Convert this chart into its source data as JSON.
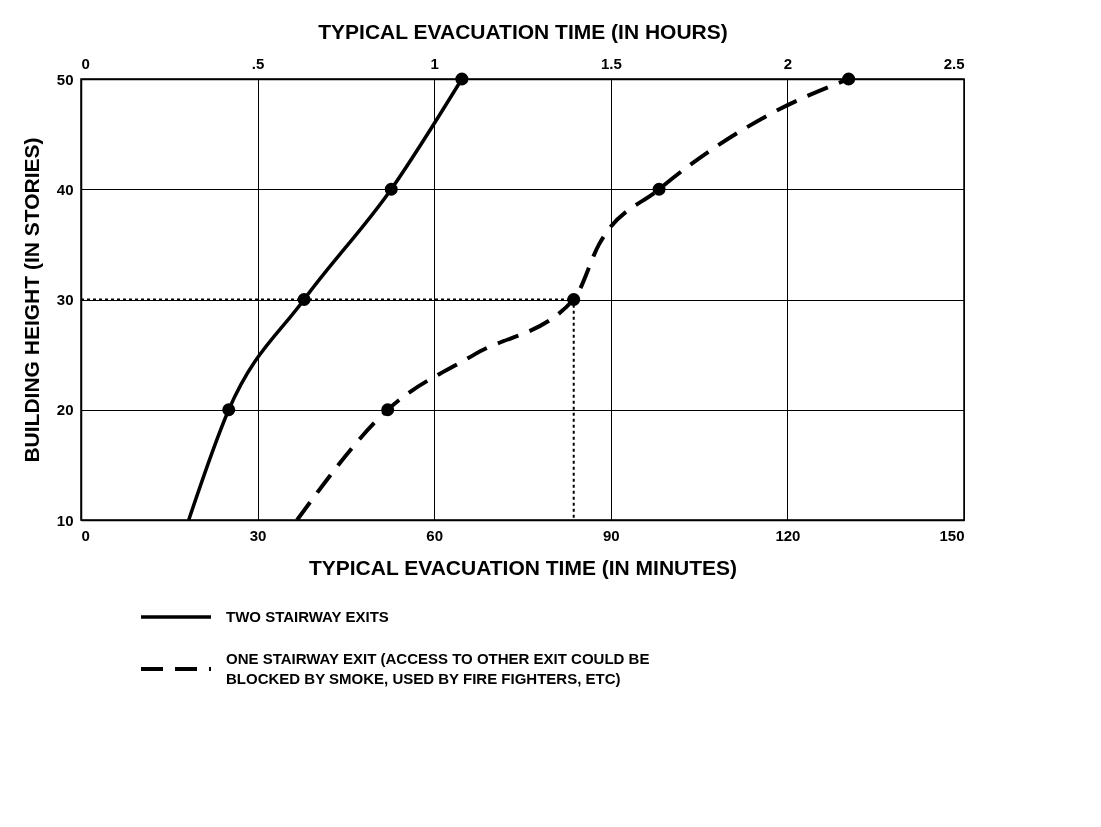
{
  "chart_data": {
    "type": "line",
    "xlabel": "TYPICAL EVACUATION TIME (IN MINUTES)",
    "x2label": "TYPICAL EVACUATION TIME (IN HOURS)",
    "ylabel": "BUILDING HEIGHT (IN STORIES)",
    "xlim": [
      0,
      150
    ],
    "xticks": [
      0,
      30,
      60,
      90,
      120,
      150
    ],
    "ylim": [
      10,
      50
    ],
    "yticks": [
      10,
      20,
      30,
      40,
      50
    ],
    "x2lim": [
      0,
      2.5
    ],
    "x2ticks": [
      0,
      {
        "value": 0.5,
        "label": ".5"
      },
      1,
      1.5,
      2,
      2.5
    ],
    "grid": true,
    "legend": "bottom",
    "series": [
      {
        "name": "TWO STAIRWAY EXITS",
        "line_style": "solid",
        "color": "#000000",
        "x": [
          18.3,
          25.1,
          37.9,
          52.7,
          64.7
        ],
        "values": [
          10,
          20,
          30,
          40,
          50
        ]
      },
      {
        "name": "ONE STAIRWAY EXIT (ACCESS TO OTHER EXIT COULD BE BLOCKED BY SMOKE, USED BY FIRE FIGHTERS, ETC)",
        "line_style": "dashed",
        "color": "#000000",
        "x": [
          36.7,
          52.1,
          66.8,
          83.7,
          88.0,
          98.2,
          117.7,
          130.4
        ],
        "values": [
          10,
          20,
          25,
          30,
          35,
          40,
          47,
          50
        ]
      },
      {
        "type": "line",
        "line_style": "dotted",
        "color": "#000000",
        "x": [
          0,
          83.7,
          83.7
        ],
        "values": [
          30,
          30,
          10
        ]
      },
      {
        "type": "scatter",
        "marker": "circle",
        "color": "#000000",
        "x": [
          25.1,
          37.9,
          52.7,
          64.7,
          52.1,
          83.7,
          98.2,
          130.4
        ],
        "values": [
          20,
          30,
          40,
          50,
          20,
          30,
          40,
          50
        ]
      }
    ]
  }
}
